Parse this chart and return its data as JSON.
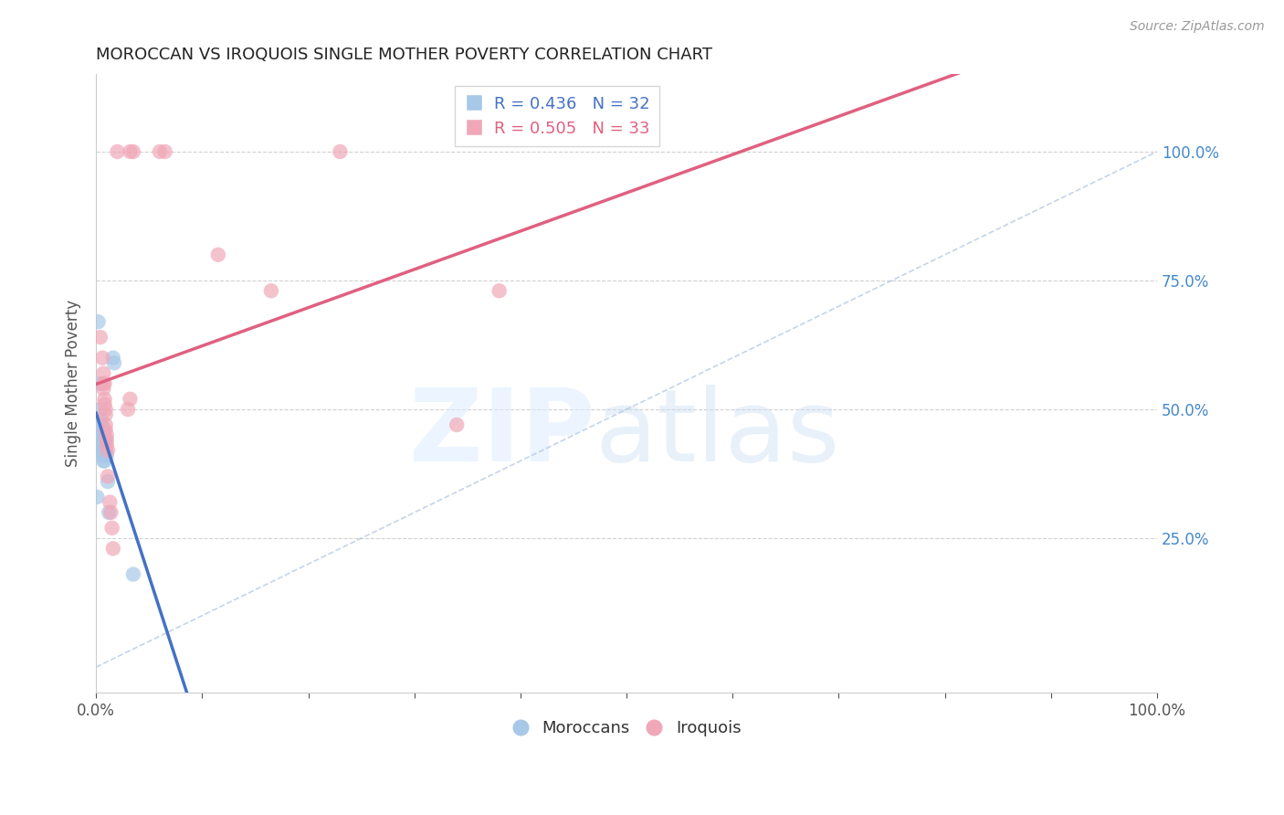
{
  "title": "MOROCCAN VS IROQUOIS SINGLE MOTHER POVERTY CORRELATION CHART",
  "source": "Source: ZipAtlas.com",
  "ylabel": "Single Mother Poverty",
  "legend_labels": [
    "Moroccans",
    "Iroquois"
  ],
  "blue_R": 0.436,
  "blue_N": 32,
  "pink_R": 0.505,
  "pink_N": 33,
  "blue_color": "#a8c8e8",
  "pink_color": "#f0a8b8",
  "blue_line_color": "#4472c4",
  "pink_line_color": "#e06080",
  "blue_scatter": [
    [
      0.001,
      0.33
    ],
    [
      0.002,
      0.67
    ],
    [
      0.003,
      0.55
    ],
    [
      0.004,
      0.5
    ],
    [
      0.004,
      0.47
    ],
    [
      0.005,
      0.47
    ],
    [
      0.005,
      0.45
    ],
    [
      0.005,
      0.48
    ],
    [
      0.005,
      0.46
    ],
    [
      0.006,
      0.46
    ],
    [
      0.006,
      0.45
    ],
    [
      0.006,
      0.44
    ],
    [
      0.006,
      0.43
    ],
    [
      0.006,
      0.42
    ],
    [
      0.007,
      0.46
    ],
    [
      0.007,
      0.45
    ],
    [
      0.007,
      0.44
    ],
    [
      0.007,
      0.42
    ],
    [
      0.007,
      0.41
    ],
    [
      0.007,
      0.4
    ],
    [
      0.008,
      0.44
    ],
    [
      0.008,
      0.43
    ],
    [
      0.008,
      0.41
    ],
    [
      0.008,
      0.4
    ],
    [
      0.009,
      0.44
    ],
    [
      0.009,
      0.42
    ],
    [
      0.01,
      0.41
    ],
    [
      0.011,
      0.36
    ],
    [
      0.012,
      0.3
    ],
    [
      0.016,
      0.6
    ],
    [
      0.017,
      0.59
    ],
    [
      0.035,
      0.18
    ]
  ],
  "pink_scatter": [
    [
      0.02,
      1.0
    ],
    [
      0.032,
      1.0
    ],
    [
      0.035,
      1.0
    ],
    [
      0.06,
      1.0
    ],
    [
      0.065,
      1.0
    ],
    [
      0.23,
      1.0
    ],
    [
      0.004,
      0.64
    ],
    [
      0.006,
      0.6
    ],
    [
      0.007,
      0.57
    ],
    [
      0.007,
      0.55
    ],
    [
      0.007,
      0.54
    ],
    [
      0.008,
      0.55
    ],
    [
      0.008,
      0.52
    ],
    [
      0.008,
      0.51
    ],
    [
      0.009,
      0.5
    ],
    [
      0.009,
      0.49
    ],
    [
      0.009,
      0.47
    ],
    [
      0.009,
      0.46
    ],
    [
      0.01,
      0.45
    ],
    [
      0.01,
      0.44
    ],
    [
      0.01,
      0.43
    ],
    [
      0.011,
      0.42
    ],
    [
      0.011,
      0.37
    ],
    [
      0.013,
      0.32
    ],
    [
      0.014,
      0.3
    ],
    [
      0.015,
      0.27
    ],
    [
      0.016,
      0.23
    ],
    [
      0.03,
      0.5
    ],
    [
      0.032,
      0.52
    ],
    [
      0.115,
      0.8
    ],
    [
      0.165,
      0.73
    ],
    [
      0.34,
      0.47
    ],
    [
      0.38,
      0.73
    ]
  ],
  "xlim": [
    0.0,
    1.0
  ],
  "ylim": [
    -0.05,
    1.15
  ],
  "plot_ylim": [
    0.0,
    1.1
  ],
  "ytick_positions": [
    0.25,
    0.5,
    0.75,
    1.0
  ],
  "ytick_labels_right": [
    "25.0%",
    "50.0%",
    "75.0%",
    "100.0%"
  ],
  "xtick_positions": [
    0.0,
    0.1,
    0.2,
    0.3,
    0.4,
    0.5,
    0.6,
    0.7,
    0.8,
    0.9,
    1.0
  ],
  "xtick_labels": [
    "0.0%",
    "",
    "",
    "",
    "",
    "",
    "",
    "",
    "",
    "",
    "100.0%"
  ],
  "grid_color": "#cccccc",
  "background_color": "#ffffff"
}
